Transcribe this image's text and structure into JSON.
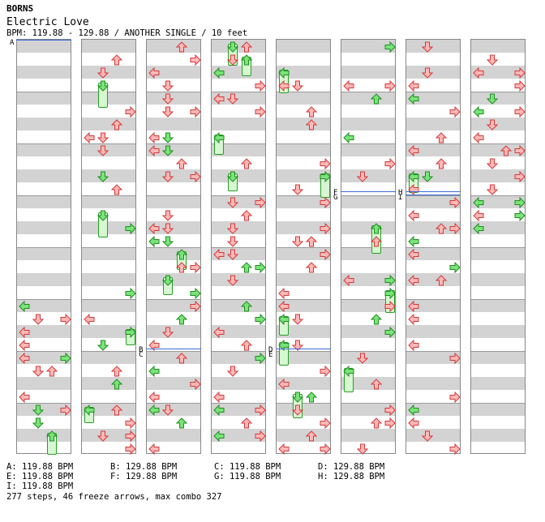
{
  "artist": "BORNS",
  "title": "Electric Love",
  "info": "BPM: 119.88 - 129.88 / ANOTHER SINGLE / 10 feet",
  "bpm_changes": [
    {
      "label": "A: 119.88 BPM"
    },
    {
      "label": "B: 129.88 BPM"
    },
    {
      "label": "C: 119.88 BPM"
    },
    {
      "label": "D: 129.88 BPM"
    },
    {
      "label": "E: 119.88 BPM"
    },
    {
      "label": "F: 129.88 BPM"
    },
    {
      "label": "G: 119.88 BPM"
    },
    {
      "label": "H: 129.88 BPM"
    },
    {
      "label": "I: 119.88 BPM"
    }
  ],
  "markers": {
    "a": "A",
    "b": "B",
    "c": "C",
    "d": "D",
    "e": "E",
    "f": "F",
    "g": "G",
    "h": "H",
    "i": "I"
  },
  "summary": "277 steps, 46 freeze arrows, max combo 327",
  "colors": {
    "red_arrow": "#ffb8b8",
    "red_stroke": "#d23a3a",
    "green_arrow": "#7ae37a",
    "green_stroke": "#1f8f1f",
    "hold": "#d6f7d0"
  },
  "icons": [
    "left-arrow-icon",
    "down-arrow-icon",
    "up-arrow-icon",
    "right-arrow-icon",
    "freeze-arrow-icon"
  ]
}
